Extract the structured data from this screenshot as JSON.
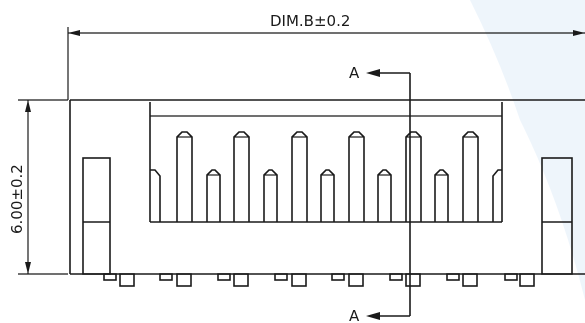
{
  "dimensions": {
    "width_label": "DIM.B±0.2",
    "height_label": "6.00±0.2"
  },
  "section": {
    "top_label": "A",
    "bottom_label": "A"
  },
  "colors": {
    "line": "#1a1a1a",
    "watermark": "#eef5fb"
  }
}
